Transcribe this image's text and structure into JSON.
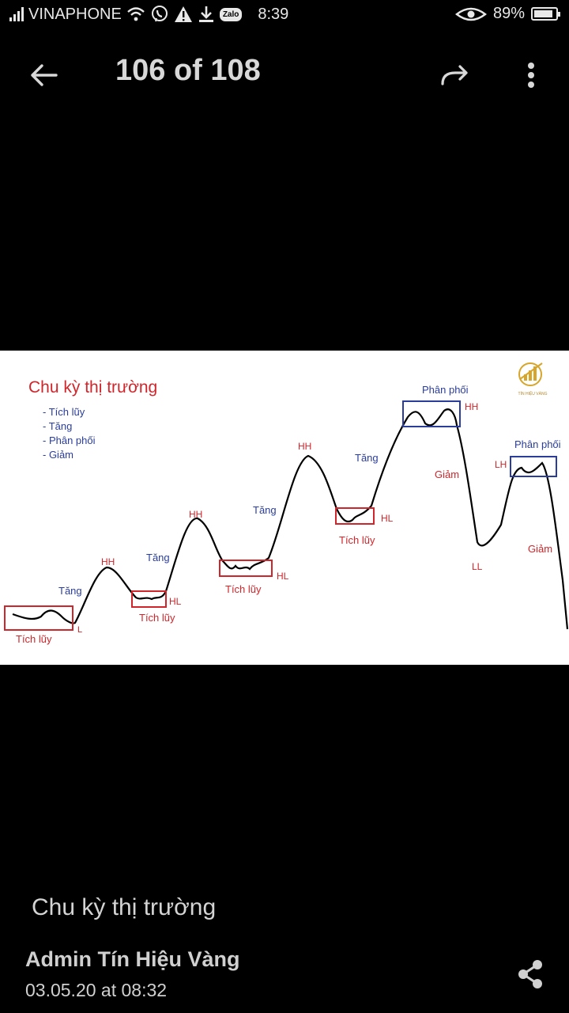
{
  "status_bar": {
    "carrier": "VINAPHONE",
    "zalo_label": "Zalo",
    "time": "8:39",
    "battery_percent": "89%",
    "battery_level": 0.89
  },
  "toolbar": {
    "counter": "106 of 108"
  },
  "image": {
    "title": "Chu kỳ thị trường",
    "legend": [
      "- Tích lũy",
      "- Tăng",
      "- Phân phối",
      "- Giảm"
    ],
    "logo_text": "TÍN HIỆU VÀNG",
    "labels": {
      "tich_luy": "Tích lũy",
      "tang": "Tăng",
      "phan_phoi": "Phân phối",
      "giam": "Giảm",
      "hh": "HH",
      "hl": "HL",
      "l": "L",
      "ll": "LL",
      "lh": "LH"
    }
  },
  "caption": "Chu kỳ thị trường",
  "author": "Admin Tín Hiệu Vàng",
  "date": "03.05.20 at 08:32"
}
